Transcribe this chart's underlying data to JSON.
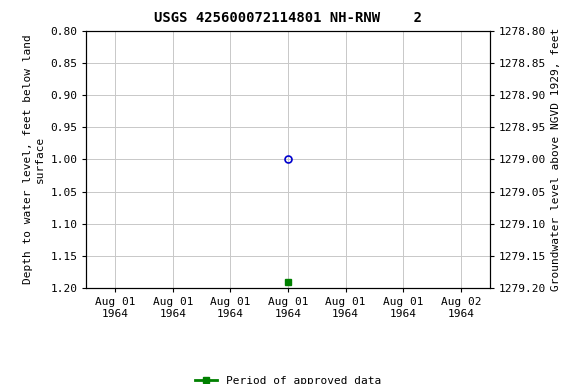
{
  "title": "USGS 425600072114801 NH-RNW    2",
  "ylabel_left": "Depth to water level, feet below land\nsurface",
  "ylabel_right": "Groundwater level above NGVD 1929, feet",
  "ylim_left": [
    0.8,
    1.2
  ],
  "ylim_right_top": 1279.2,
  "ylim_right_bottom": 1278.8,
  "x_data_blue": [
    3
  ],
  "y_data_blue": [
    1.0
  ],
  "x_data_green": [
    3
  ],
  "y_data_green": [
    1.19
  ],
  "x_ticks": [
    0,
    1,
    2,
    3,
    4,
    5,
    6
  ],
  "x_tick_labels": [
    "Aug 01\n1964",
    "Aug 01\n1964",
    "Aug 01\n1964",
    "Aug 01\n1964",
    "Aug 01\n1964",
    "Aug 01\n1964",
    "Aug 02\n1964"
  ],
  "x_lim": [
    -0.5,
    6.5
  ],
  "yticks_left": [
    0.8,
    0.85,
    0.9,
    0.95,
    1.0,
    1.05,
    1.1,
    1.15,
    1.2
  ],
  "yticks_right": [
    1279.2,
    1279.15,
    1279.1,
    1279.05,
    1279.0,
    1278.95,
    1278.9,
    1278.85,
    1278.8
  ],
  "grid_color": "#c8c8c8",
  "background_color": "#ffffff",
  "blue_marker_color": "#0000cd",
  "green_marker_color": "#008000",
  "legend_label": "Period of approved data",
  "title_fontsize": 10,
  "axis_label_fontsize": 8,
  "tick_fontsize": 8
}
